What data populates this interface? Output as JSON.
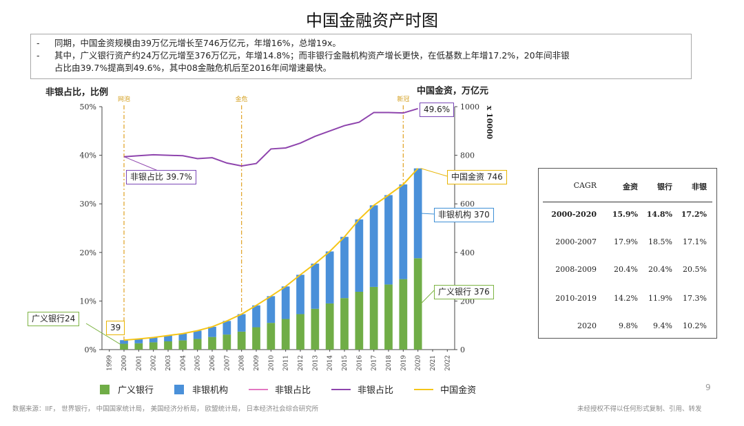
{
  "page": {
    "title": "中国金融资产时图",
    "bullets": [
      "同期，中国金资规模由39万亿元增长至746万亿元，年增16%，总增19x。",
      "其中，广义银行资产约24万亿元增至376万亿元，年增14.8%；而非银行金融机构资产增长更快，在低基数上年增17.2%，20年间非银",
      "占比由39.7%提高到49.6%，其中08金融危机后至2016年间增速最快。"
    ],
    "bullet_marker": "-",
    "left_axis_title": "非银占比，比例",
    "right_axis_title": "中国金资，万亿元",
    "right_axis_multiplier": "x 10000",
    "page_number": "9",
    "footer_left": "数据来源：IIF， 世界银行， 中国国家统计局， 美国经济分析局， 欧盟统计局， 日本经济社会综合研究所",
    "footer_right": "未经授权不得以任何形式复制、引用、转发"
  },
  "annotations": {
    "nonbank_start": "非银占比 39.7%",
    "nonbank_end": "49.6%",
    "total_end": "中国金资 746",
    "nonbank_inst_end": "非银机构 370",
    "bank_end": "广义银行 376",
    "bank_start": "广义银行24",
    "total_start": "39"
  },
  "table": {
    "headers": [
      "CAGR",
      "金资",
      "银行",
      "非银"
    ],
    "rows": [
      {
        "label": "2000-2020",
        "v1": "15.9%",
        "v2": "14.8%",
        "v3": "17.2%",
        "bold": true
      },
      {
        "label": "2000-2007",
        "v1": "17.9%",
        "v2": "18.5%",
        "v3": "17.1%"
      },
      {
        "label": "2008-2009",
        "v1": "20.4%",
        "v2": "20.4%",
        "v3": "20.5%"
      },
      {
        "label": "2010-2019",
        "v1": "14.2%",
        "v2": "11.9%",
        "v3": "17.3%"
      },
      {
        "label": "2020",
        "v1": "9.8%",
        "v2": "9.4%",
        "v3": "10.2%"
      }
    ]
  },
  "legend": [
    {
      "label": "广义银行",
      "kind": "box",
      "color": "#70ad47"
    },
    {
      "label": "非银机构",
      "kind": "box",
      "color": "#4a90d9"
    },
    {
      "label": "非银占比",
      "kind": "line",
      "color": "#e377c2"
    },
    {
      "label": "非银占比",
      "kind": "line",
      "color": "#8e44ad"
    },
    {
      "label": "中国金资",
      "kind": "line",
      "color": "#f5c518"
    }
  ],
  "chart_data": {
    "type": "bar",
    "stacked": true,
    "categories": [
      "1999",
      "2000",
      "2001",
      "2002",
      "2003",
      "2004",
      "2005",
      "2006",
      "2007",
      "2008",
      "2009",
      "2010",
      "2011",
      "2012",
      "2013",
      "2014",
      "2015",
      "2016",
      "2017",
      "2018",
      "2019",
      "2020",
      "2021",
      "2022"
    ],
    "series": [
      {
        "name": "广义银行",
        "type": "bar",
        "axis": "right",
        "color": "#70ad47",
        "values": [
          null,
          24,
          26,
          30,
          34,
          38,
          44,
          52,
          62,
          74,
          92,
          110,
          126,
          146,
          168,
          190,
          212,
          238,
          258,
          268,
          290,
          376,
          null,
          null
        ]
      },
      {
        "name": "非银机构",
        "type": "bar",
        "axis": "right",
        "color": "#4a90d9",
        "values": [
          null,
          15,
          18,
          20,
          24,
          28,
          34,
          42,
          56,
          72,
          90,
          110,
          134,
          162,
          186,
          214,
          252,
          298,
          336,
          368,
          390,
          370,
          null,
          null
        ]
      },
      {
        "name": "非银占比",
        "type": "line",
        "axis": "left",
        "color": "#8e44ad",
        "values": [
          null,
          39.7,
          39.9,
          40.1,
          40.0,
          39.9,
          39.3,
          39.5,
          38.4,
          37.8,
          38.3,
          41.3,
          41.5,
          42.5,
          43.9,
          45.0,
          46.1,
          46.8,
          48.8,
          48.8,
          48.7,
          49.6,
          null,
          null
        ]
      },
      {
        "name": "中国金资",
        "type": "line",
        "axis": "right",
        "color": "#f5c518",
        "values": [
          null,
          39,
          44,
          50,
          58,
          66,
          78,
          94,
          118,
          146,
          182,
          220,
          260,
          308,
          354,
          404,
          464,
          536,
          594,
          636,
          680,
          746,
          null,
          null
        ]
      }
    ],
    "markers": [
      {
        "x": "2000",
        "label": "网泡"
      },
      {
        "x": "2008",
        "label": "金危"
      },
      {
        "x": "2019",
        "label": "新冠"
      }
    ],
    "ylim_left": [
      0,
      50
    ],
    "yticks_left": [
      "0%",
      "10%",
      "20%",
      "30%",
      "40%",
      "50%"
    ],
    "ylim_right": [
      0,
      1000
    ],
    "yticks_right": [
      "0",
      "200",
      "400",
      "600",
      "800",
      "1000"
    ],
    "xlabel": "",
    "ylabel": "非银占比，比例",
    "y2label": "中国金资，万亿元",
    "grid": false
  }
}
